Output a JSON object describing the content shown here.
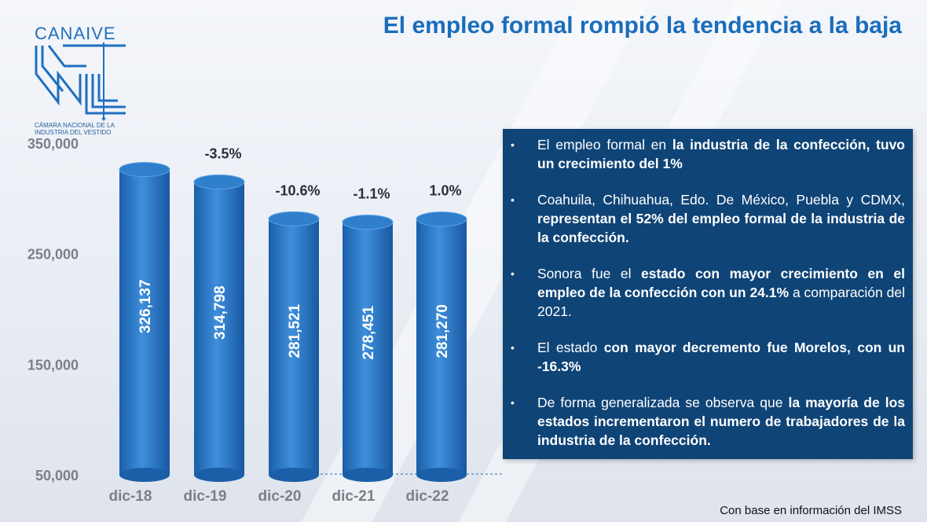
{
  "title": "El empleo formal rompió la tendencia a la baja",
  "logo": {
    "name": "CANAIVE",
    "subtitle_line1": "CÁMARA NACIONAL DE LA",
    "subtitle_line2": "INDUSTRIA DEL VESTIDO"
  },
  "colors": {
    "bar": "#1f6fbf",
    "bar_light": "#3e8fdc",
    "panel": "#0f4477",
    "title": "#1a6dbc"
  },
  "chart_data": {
    "type": "bar",
    "categories": [
      "dic-18",
      "dic-19",
      "dic-20",
      "dic-21",
      "dic-22"
    ],
    "values": [
      326137,
      314798,
      281521,
      278451,
      281270
    ],
    "value_labels": [
      "326,137",
      "314,798",
      "281,521",
      "278,451",
      "281,270"
    ],
    "change_labels": [
      "",
      "-3.5%",
      "-10.6%",
      "-1.1%",
      "1.0%"
    ],
    "yticks": [
      "350,000",
      "250,000",
      "150,000",
      "50,000"
    ],
    "ytick_values": [
      350000,
      250000,
      150000,
      50000
    ],
    "ylim": [
      50000,
      350000
    ],
    "grid": false,
    "xlabel": "",
    "ylabel": ""
  },
  "bullets": [
    [
      {
        "t": "El empleo formal en "
      },
      {
        "t": "la industria de la confección, tuvo un crecimiento del 1%",
        "b": true
      }
    ],
    [
      {
        "t": "Coahuila, Chihuahua, Edo. De México, Puebla y CDMX, "
      },
      {
        "t": "representan el 52% del empleo formal de la industria de la confección.",
        "b": true
      }
    ],
    [
      {
        "t": "Sonora fue el "
      },
      {
        "t": "estado con mayor crecimiento en el empleo de la confección con un 24.1%",
        "b": true
      },
      {
        "t": " a comparación del 2021."
      }
    ],
    [
      {
        "t": "El estado "
      },
      {
        "t": "con mayor decremento fue Morelos, con un -16.3%",
        "b": true
      }
    ],
    [
      {
        "t": "De forma generalizada se observa que "
      },
      {
        "t": "la mayoría de los estados incrementaron el numero de trabajadores de la industria de la confección.",
        "b": true
      }
    ]
  ],
  "source": "Con base en información del IMSS"
}
